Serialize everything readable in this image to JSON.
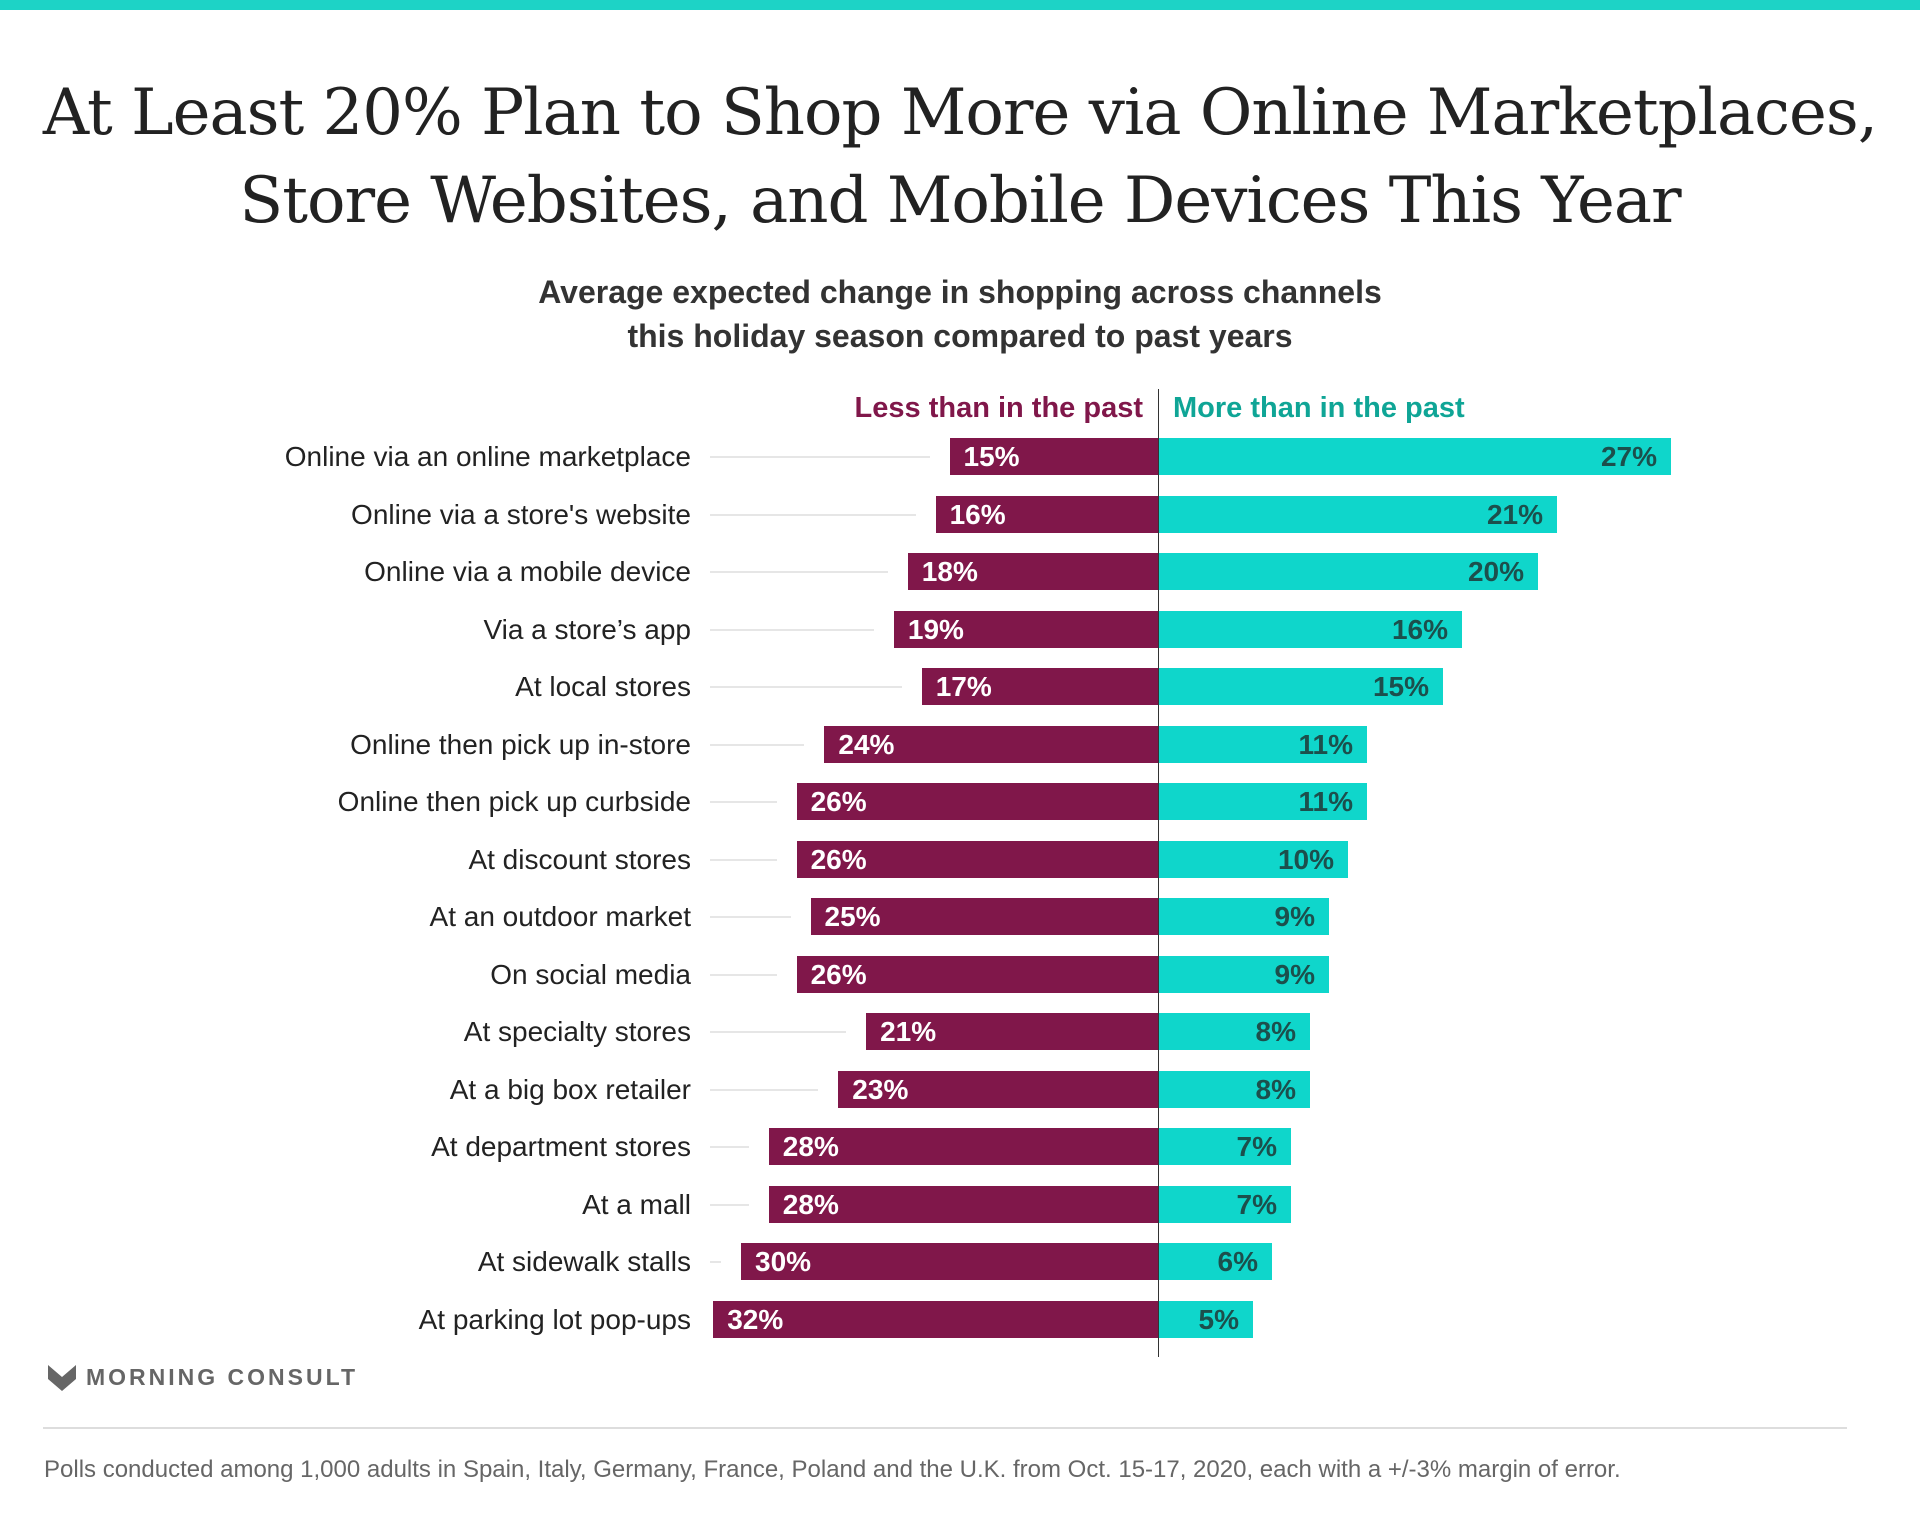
{
  "header": {
    "title_lines": [
      "At Least 20% Plan to Shop More via Online Marketplaces,",
      "Store Websites, and Mobile Devices This Year"
    ],
    "subtitle_lines": [
      "Average expected change in shopping across channels",
      "this holiday season compared to past years"
    ]
  },
  "colors": {
    "less": "#80174a",
    "more": "#0fd6cb",
    "accent": "#1dd3c6"
  },
  "chart_data": {
    "type": "bar",
    "orientation": "diverging-horizontal",
    "title": "At Least 20% Plan to Shop More via Online Marketplaces, Store Websites, and Mobile Devices This Year",
    "subtitle": "Average expected change in shopping across channels this holiday season compared to past years",
    "legend": [
      "Less than in the past",
      "More than in the past"
    ],
    "categories": [
      "Online via an online marketplace",
      "Online via a store's website",
      "Online via a mobile device",
      "Via a store’s app",
      "At local stores",
      "Online then pick up in-store",
      "Online then pick up curbside",
      "At discount stores",
      "At an outdoor market",
      "On social media",
      "At specialty stores",
      "At a big box retailer",
      "At department stores",
      "At a mall",
      "At sidewalk stalls",
      "At parking lot pop-ups"
    ],
    "series": [
      {
        "name": "Less than in the past",
        "values": [
          15,
          16,
          18,
          19,
          17,
          24,
          26,
          26,
          25,
          26,
          21,
          23,
          28,
          28,
          30,
          32
        ]
      },
      {
        "name": "More than in the past",
        "values": [
          27,
          21,
          20,
          16,
          15,
          11,
          11,
          10,
          9,
          9,
          8,
          8,
          7,
          7,
          6,
          5
        ]
      }
    ],
    "unit": "%"
  },
  "brand": {
    "logo_text": "MORNING CONSULT"
  },
  "footnote": "Polls conducted among 1,000 adults in Spain, Italy, Germany, France, Poland and the U.K. from Oct. 15-17, 2020, each with a +/-3% margin of error."
}
